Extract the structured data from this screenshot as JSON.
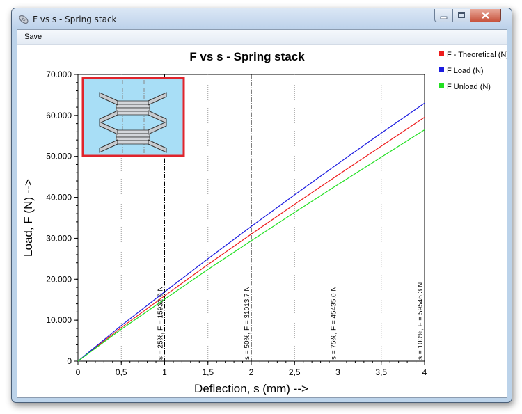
{
  "window": {
    "title": "F vs s - Spring stack",
    "menu": [
      "Save"
    ]
  },
  "colors": {
    "theoretical": "#ee1c1c",
    "load": "#1c1ce0",
    "unload": "#22e022",
    "inset_bg": "#a8def6",
    "inset_border": "#e0242c"
  },
  "chart_data": {
    "type": "line",
    "title": "F vs s - Spring stack",
    "xlabel": "Deflection, s (mm) -->",
    "ylabel": "Load, F (N) -->",
    "xlim": [
      0,
      4
    ],
    "ylim": [
      0,
      70000
    ],
    "x_ticks": [
      "0",
      "0,5",
      "1",
      "1,5",
      "2",
      "2,5",
      "3",
      "3,5",
      "4"
    ],
    "y_ticks": [
      "0",
      "10.000",
      "20.000",
      "30.000",
      "40.000",
      "50.000",
      "60.000",
      "70.000"
    ],
    "grid": "vertical dotted",
    "legend_position": "right",
    "x": [
      0,
      0.5,
      1,
      1.5,
      2,
      2.5,
      3,
      3.5,
      4
    ],
    "series": [
      {
        "name": "F - Theoretical (N)",
        "color": "#ee1c1c",
        "values": [
          0,
          8200,
          15932,
          23600,
          31014,
          38300,
          45435,
          52500,
          59546
        ]
      },
      {
        "name": "F Load (N)",
        "color": "#1c1ce0",
        "values": [
          0,
          8700,
          16900,
          25000,
          32900,
          40600,
          48200,
          55700,
          63000
        ]
      },
      {
        "name": "F Unload (N)",
        "color": "#22e022",
        "values": [
          0,
          7800,
          15100,
          22400,
          29400,
          36300,
          43100,
          49800,
          56500
        ]
      }
    ],
    "annotations": [
      {
        "x": 1,
        "label": "s = 25%,  F = 15932,0 N"
      },
      {
        "x": 2,
        "label": "s = 50%,  F = 31013,7 N"
      },
      {
        "x": 3,
        "label": "s = 75%,  F = 45435,0 N"
      },
      {
        "x": 4,
        "label": "s = 100%,  F = 59546,3 N"
      }
    ]
  }
}
